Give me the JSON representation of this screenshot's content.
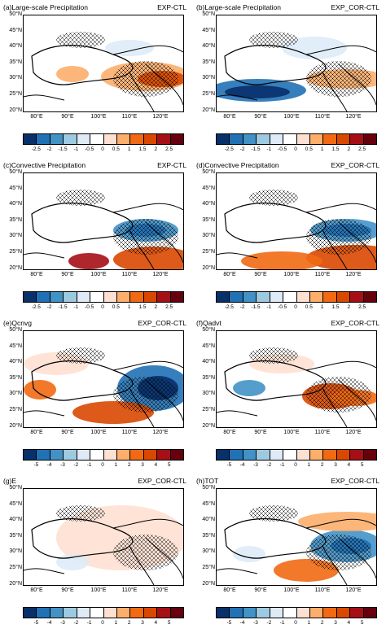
{
  "colors": [
    "#08306b",
    "#2171b5",
    "#4292c6",
    "#9ecae1",
    "#deebf7",
    "#ffffff",
    "#fee0d2",
    "#fdae6b",
    "#f16913",
    "#d94801",
    "#a50f15"
  ],
  "lat_labels": [
    "50°N",
    "45°N",
    "40°N",
    "35°N",
    "30°N",
    "25°N",
    "20°N"
  ],
  "lon_labels": [
    "80°E",
    "90°E",
    "100°E",
    "110°E",
    "120°E"
  ],
  "scale_a": [
    "-2.5",
    "-2",
    "-1.5",
    "-1",
    "-0.5",
    "0",
    "0.5",
    "1",
    "1.5",
    "2",
    "2.5"
  ],
  "scale_b": [
    "-5",
    "-4",
    "-3",
    "-2",
    "-1",
    "0",
    "1",
    "2",
    "3",
    "4",
    "5"
  ],
  "panels": [
    {
      "label": "(a)Large-scale Precipitation",
      "exp": "EXP-CTL"
    },
    {
      "label": "(b)Large-scale Precipitation",
      "exp": "EXP_COR-CTL"
    },
    {
      "label": "(c)Convective Precipitation",
      "exp": "EXP-CTL"
    },
    {
      "label": "(d)Convective Precipitation",
      "exp": "EXP_COR-CTL"
    },
    {
      "label": "(e)Qcnvg",
      "exp": "EXP_COR-CTL"
    },
    {
      "label": "(f)Qadvt",
      "exp": "EXP_COR-CTL"
    },
    {
      "label": "(g)E",
      "exp": "EXP_COR-CTL"
    },
    {
      "label": "(h)TOT",
      "exp": "EXP_COR-CTL"
    }
  ]
}
